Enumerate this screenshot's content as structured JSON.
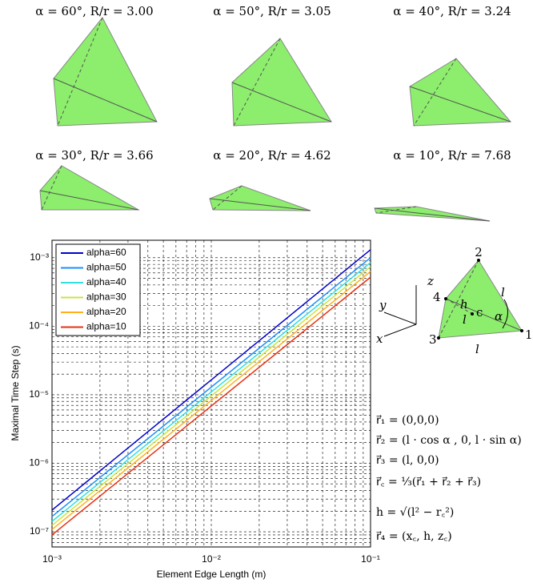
{
  "tetrahedra": [
    {
      "label": "α = 60°, R/r = 3.00"
    },
    {
      "label": "α = 50°, R/r = 3.05"
    },
    {
      "label": "α = 40°, R/r = 3.24"
    },
    {
      "label": "α = 30°, R/r = 3.66"
    },
    {
      "label": "α = 20°, R/r = 4.62"
    },
    {
      "label": "α = 10°, R/r = 7.68"
    }
  ],
  "chart_data": {
    "type": "line",
    "xlabel": "Element Edge Length (m)",
    "ylabel": "Maximal Time Step (s)",
    "log_x": true,
    "log_y": true,
    "grid": true,
    "legend": "upper left",
    "x": [
      0.001,
      0.1
    ],
    "series": [
      {
        "name": "alpha=60",
        "color": "#0000cc",
        "values": [
          2.07e-07,
          0.00131
        ]
      },
      {
        "name": "alpha=50",
        "color": "#1e8fff",
        "values": [
          1.67e-07,
          0.001
        ]
      },
      {
        "name": "alpha=40",
        "color": "#30e0e0",
        "values": [
          1.42e-07,
          0.00085
        ]
      },
      {
        "name": "alpha=30",
        "color": "#c8e640",
        "values": [
          1.24e-07,
          0.00074
        ]
      },
      {
        "name": "alpha=20",
        "color": "#ffb020",
        "values": [
          1.08e-07,
          0.00063
        ]
      },
      {
        "name": "alpha=10",
        "color": "#e83010",
        "values": [
          9e-08,
          0.00052
        ]
      }
    ],
    "xlim": [
      0.001,
      0.1
    ],
    "ylim": [
      6e-08,
      0.0018
    ],
    "xticks": [
      {
        "value": 0.001,
        "label": "10⁻³"
      },
      {
        "value": 0.01,
        "label": "10⁻²"
      },
      {
        "value": 0.1,
        "label": "10⁻¹"
      }
    ],
    "yticks": [
      {
        "value": 1e-07,
        "label": "10⁻⁷"
      },
      {
        "value": 1e-06,
        "label": "10⁻⁶"
      },
      {
        "value": 1e-05,
        "label": "10⁻⁵"
      },
      {
        "value": 0.0001,
        "label": "10⁻⁴"
      },
      {
        "value": 0.001,
        "label": "10⁻³"
      }
    ],
    "xminorticks": [
      0.002,
      0.003,
      0.004,
      0.005,
      0.006,
      0.007,
      0.008,
      0.009,
      0.02,
      0.03,
      0.04,
      0.05,
      0.06,
      0.07,
      0.08,
      0.09
    ],
    "yminorticks": [
      7e-08,
      8e-08,
      9e-08,
      2e-07,
      3e-07,
      4e-07,
      5e-07,
      6e-07,
      7e-07,
      8e-07,
      9e-07,
      2e-06,
      3e-06,
      4e-06,
      5e-06,
      6e-06,
      7e-06,
      8e-06,
      9e-06,
      2e-05,
      3e-05,
      4e-05,
      5e-05,
      6e-05,
      7e-05,
      8e-05,
      9e-05,
      0.0002,
      0.0003,
      0.0004,
      0.0005,
      0.0006,
      0.0007,
      0.0008,
      0.0009
    ]
  },
  "diagram": {
    "vertices": [
      "1",
      "2",
      "3",
      "4"
    ],
    "center": "c",
    "height": "h",
    "edges": [
      "l",
      "l",
      "l"
    ],
    "angle": "α",
    "axes": [
      "x",
      "y",
      "z"
    ]
  },
  "equations": [
    "r⃗₁ = (0,0,0)",
    "r⃗₂ = (l · cos α , 0, l · sin α)",
    "r⃗₃ = (l, 0,0)",
    "r⃗꜀ = ⅓(r⃗₁ + r⃗₂ + r⃗₃)",
    "h = √(l² − r꜀²)",
    "r⃗₄ = (x꜀, h, z꜀)"
  ]
}
